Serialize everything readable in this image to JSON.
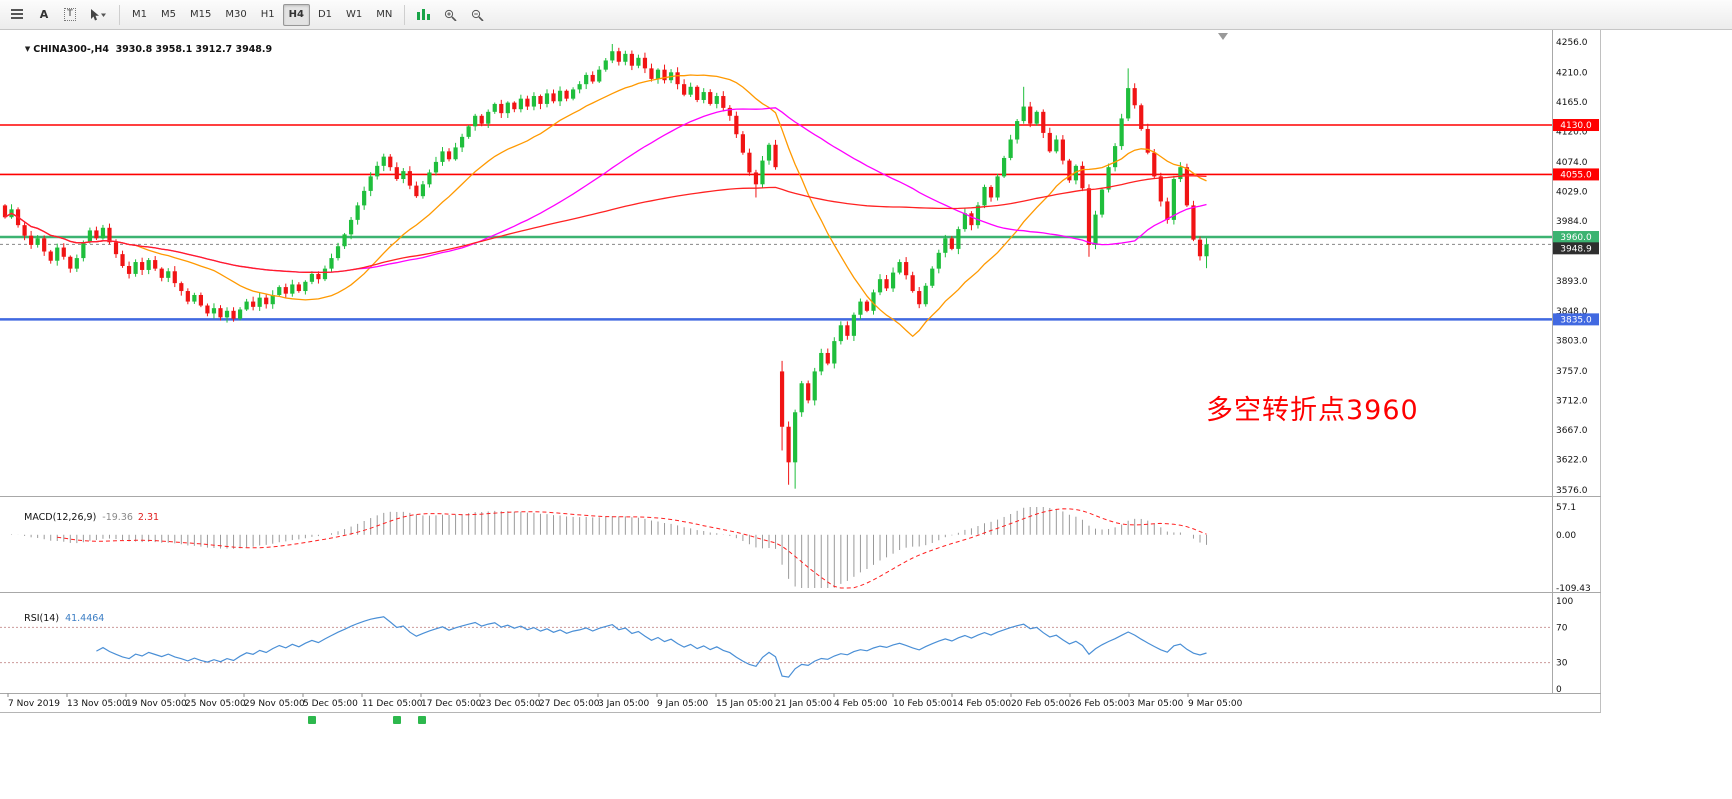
{
  "toolbar": {
    "left_tools": [
      {
        "name": "chart-list-icon"
      },
      {
        "name": "text-annotation-icon"
      },
      {
        "name": "text-box-icon"
      },
      {
        "name": "cursor-tool-icon"
      }
    ],
    "timeframes": [
      "M1",
      "M5",
      "M15",
      "M30",
      "H1",
      "H4",
      "D1",
      "W1",
      "MN"
    ],
    "active_timeframe": "H4",
    "right_tools": [
      {
        "name": "tick-grid-icon"
      },
      {
        "name": "zoom-in-icon"
      },
      {
        "name": "zoom-out-icon"
      }
    ]
  },
  "chart": {
    "title_full": "CHINA300-,H4  3930.8 3958.1 3912.7 3948.9",
    "symbol": "CHINA300-",
    "period": "H4",
    "ohlc": {
      "open": "3930.8",
      "high": "3958.1",
      "low": "3912.7",
      "close": "3948.9"
    },
    "annotation": "多空转折点3960",
    "current_price": {
      "value": 3948.9,
      "label": "3948.9"
    },
    "levels": [
      {
        "value": 4130.0,
        "label": "4130.0",
        "color": "#ff0000",
        "width": 1.6
      },
      {
        "value": 4055.0,
        "label": "4055.0",
        "color": "#ff0000",
        "width": 1.6
      },
      {
        "value": 3960.0,
        "label": "3960.0",
        "color": "#3cb371",
        "width": 2.4
      },
      {
        "value": 3835.0,
        "label": "3835.0",
        "color": "#4169e1",
        "width": 2.4
      }
    ],
    "price_scale_labels": [
      "4256.0",
      "4210.0",
      "4165.0",
      "4120.0",
      "4074.0",
      "4029.0",
      "3984.0",
      "3939.0",
      "3893.0",
      "3848.0",
      "3803.0",
      "3757.0",
      "3712.0",
      "3667.0",
      "3622.0",
      "3576.0"
    ],
    "colors": {
      "up": "#1fbe3c",
      "down": "#f01414",
      "ma_fast": "#ff9900",
      "ma_mid": "#ff00ff",
      "ma_slow": "#ff2222",
      "badge_text": "#ffffff",
      "current_badge": "#2e2e2e",
      "scale_text": "#111111",
      "border": "#a8a8a8"
    },
    "moving_averages": [
      {
        "name": "ma-fast",
        "period": 21,
        "color": "#ff9900"
      },
      {
        "name": "ma-mid",
        "period": 55,
        "color": "#ff00ff"
      },
      {
        "name": "ma-slow",
        "period": 130,
        "color": "#ff2222"
      }
    ]
  },
  "indicators": {
    "macd": {
      "name": "MACD(12,26,9)",
      "value": "-19.36",
      "signal_value": "2.31",
      "params": [
        12,
        26,
        9
      ],
      "scale": [
        "57.1",
        "0.00",
        "-109.43"
      ],
      "range": [
        -109.43,
        57.1
      ],
      "hist_color": "#9a9a9a",
      "signal_color": "#ff2020"
    },
    "rsi": {
      "name": "RSI(14)",
      "value": "41.4464",
      "period": 14,
      "scale": [
        "100",
        "70",
        "30",
        "0"
      ],
      "levels": [
        70,
        30
      ],
      "range": [
        0,
        100
      ],
      "line_color": "#4a8fd6",
      "level_color": "#cc9999"
    }
  },
  "x_axis": {
    "labels": [
      "7 Nov 2019",
      "13 Nov 05:00",
      "19 Nov 05:00",
      "25 Nov 05:00",
      "29 Nov 05:00",
      "5 Dec 05:00",
      "11 Dec 05:00",
      "17 Dec 05:00",
      "23 Dec 05:00",
      "27 Dec 05:00",
      "3 Jan 05:00",
      "9 Jan 05:00",
      "15 Jan 05:00",
      "21 Jan 05:00",
      "4 Feb 05:00",
      "10 Feb 05:00",
      "14 Feb 05:00",
      "20 Feb 05:00",
      "26 Feb 05:00",
      "3 Mar 05:00",
      "9 Mar 05:00"
    ]
  },
  "chart_data": {
    "type": "candlestick",
    "symbol": "CHINA300-",
    "timeframe": "H4",
    "y_range": [
      3576,
      4256
    ],
    "candles_oc": [
      [
        4008,
        3990
      ],
      [
        3990,
        4002
      ],
      [
        4002,
        3978
      ],
      [
        3978,
        3962
      ],
      [
        3962,
        3948
      ],
      [
        3948,
        3958
      ],
      [
        3958,
        3938
      ],
      [
        3938,
        3924
      ],
      [
        3924,
        3944
      ],
      [
        3944,
        3930
      ],
      [
        3930,
        3912
      ],
      [
        3912,
        3928
      ],
      [
        3928,
        3952
      ],
      [
        3952,
        3970
      ],
      [
        3970,
        3958
      ],
      [
        3958,
        3974
      ],
      [
        3974,
        3952
      ],
      [
        3952,
        3934
      ],
      [
        3934,
        3916
      ],
      [
        3916,
        3904
      ],
      [
        3904,
        3922
      ],
      [
        3922,
        3910
      ],
      [
        3910,
        3925
      ],
      [
        3925,
        3912
      ],
      [
        3912,
        3898
      ],
      [
        3898,
        3908
      ],
      [
        3908,
        3890
      ],
      [
        3890,
        3878
      ],
      [
        3878,
        3862
      ],
      [
        3862,
        3872
      ],
      [
        3872,
        3856
      ],
      [
        3856,
        3844
      ],
      [
        3844,
        3852
      ],
      [
        3852,
        3838
      ],
      [
        3838,
        3848
      ],
      [
        3848,
        3836
      ],
      [
        3836,
        3850
      ],
      [
        3850,
        3862
      ],
      [
        3862,
        3854
      ],
      [
        3854,
        3868
      ],
      [
        3868,
        3858
      ],
      [
        3858,
        3872
      ],
      [
        3872,
        3884
      ],
      [
        3884,
        3874
      ],
      [
        3874,
        3888
      ],
      [
        3888,
        3878
      ],
      [
        3878,
        3892
      ],
      [
        3892,
        3904
      ],
      [
        3904,
        3896
      ],
      [
        3896,
        3912
      ],
      [
        3912,
        3928
      ],
      [
        3928,
        3946
      ],
      [
        3946,
        3964
      ],
      [
        3964,
        3986
      ],
      [
        3986,
        4008
      ],
      [
        4008,
        4030
      ],
      [
        4030,
        4052
      ],
      [
        4052,
        4068
      ],
      [
        4068,
        4082
      ],
      [
        4082,
        4066
      ],
      [
        4066,
        4048
      ],
      [
        4048,
        4060
      ],
      [
        4060,
        4038
      ],
      [
        4038,
        4022
      ],
      [
        4022,
        4040
      ],
      [
        4040,
        4058
      ],
      [
        4058,
        4074
      ],
      [
        4074,
        4090
      ],
      [
        4090,
        4078
      ],
      [
        4078,
        4096
      ],
      [
        4096,
        4112
      ],
      [
        4112,
        4128
      ],
      [
        4128,
        4144
      ],
      [
        4144,
        4132
      ],
      [
        4132,
        4150
      ],
      [
        4150,
        4162
      ],
      [
        4162,
        4148
      ],
      [
        4148,
        4164
      ],
      [
        4164,
        4154
      ],
      [
        4154,
        4170
      ],
      [
        4170,
        4158
      ],
      [
        4158,
        4174
      ],
      [
        4174,
        4162
      ],
      [
        4162,
        4178
      ],
      [
        4178,
        4166
      ],
      [
        4166,
        4182
      ],
      [
        4182,
        4170
      ],
      [
        4170,
        4184
      ],
      [
        4184,
        4192
      ],
      [
        4192,
        4206
      ],
      [
        4206,
        4196
      ],
      [
        4196,
        4214
      ],
      [
        4214,
        4228
      ],
      [
        4228,
        4242
      ],
      [
        4242,
        4226
      ],
      [
        4226,
        4238
      ],
      [
        4238,
        4220
      ],
      [
        4220,
        4232
      ],
      [
        4232,
        4216
      ],
      [
        4216,
        4200
      ],
      [
        4200,
        4214
      ],
      [
        4214,
        4198
      ],
      [
        4198,
        4210
      ],
      [
        4210,
        4192
      ],
      [
        4192,
        4176
      ],
      [
        4176,
        4188
      ],
      [
        4188,
        4168
      ],
      [
        4168,
        4180
      ],
      [
        4180,
        4162
      ],
      [
        4162,
        4174
      ],
      [
        4174,
        4156
      ],
      [
        4156,
        4144
      ],
      [
        4144,
        4116
      ],
      [
        4116,
        4088
      ],
      [
        4088,
        4058
      ],
      [
        4058,
        4040
      ],
      [
        4040,
        4076
      ],
      [
        4076,
        4100
      ],
      [
        4100,
        4066
      ],
      [
        3756,
        3672
      ],
      [
        3672,
        3618
      ],
      [
        3618,
        3694
      ],
      [
        3694,
        3738
      ],
      [
        3738,
        3712
      ],
      [
        3712,
        3756
      ],
      [
        3756,
        3784
      ],
      [
        3784,
        3768
      ],
      [
        3768,
        3802
      ],
      [
        3802,
        3826
      ],
      [
        3826,
        3810
      ],
      [
        3810,
        3842
      ],
      [
        3842,
        3862
      ],
      [
        3862,
        3848
      ],
      [
        3848,
        3876
      ],
      [
        3876,
        3896
      ],
      [
        3896,
        3882
      ],
      [
        3882,
        3906
      ],
      [
        3906,
        3922
      ],
      [
        3922,
        3902
      ],
      [
        3902,
        3878
      ],
      [
        3878,
        3858
      ],
      [
        3858,
        3886
      ],
      [
        3886,
        3912
      ],
      [
        3912,
        3936
      ],
      [
        3936,
        3958
      ],
      [
        3958,
        3942
      ],
      [
        3942,
        3972
      ],
      [
        3972,
        3996
      ],
      [
        3996,
        3978
      ],
      [
        3978,
        4008
      ],
      [
        4008,
        4036
      ],
      [
        4036,
        4020
      ],
      [
        4020,
        4052
      ],
      [
        4052,
        4080
      ],
      [
        4080,
        4108
      ],
      [
        4108,
        4136
      ],
      [
        4136,
        4158
      ],
      [
        4158,
        4132
      ],
      [
        4132,
        4150
      ],
      [
        4150,
        4118
      ],
      [
        4118,
        4090
      ],
      [
        4090,
        4108
      ],
      [
        4108,
        4076
      ],
      [
        4076,
        4046
      ],
      [
        4046,
        4068
      ],
      [
        4068,
        4034
      ],
      [
        4034,
        3948
      ],
      [
        3948,
        3994
      ],
      [
        3994,
        4032
      ],
      [
        4032,
        4066
      ],
      [
        4066,
        4098
      ],
      [
        4098,
        4140
      ],
      [
        4140,
        4186
      ],
      [
        4186,
        4160
      ],
      [
        4160,
        4124
      ],
      [
        4124,
        4088
      ],
      [
        4088,
        4052
      ],
      [
        4052,
        4014
      ],
      [
        4014,
        3986
      ],
      [
        3986,
        4048
      ],
      [
        4048,
        4066
      ],
      [
        4066,
        4008
      ],
      [
        4008,
        3956
      ],
      [
        3956,
        3930.8
      ],
      [
        3930.8,
        3948.9
      ]
    ],
    "wick_overrides": {
      "93": [
        4253,
        4224
      ],
      "115": [
        4062,
        4020
      ],
      "119": [
        3772,
        3636
      ],
      "120": [
        3680,
        3584
      ],
      "121": [
        3698,
        3578
      ],
      "156": [
        4188,
        4132
      ],
      "166": [
        4040,
        3930
      ],
      "172": [
        4216,
        4136
      ],
      "184": [
        3958.1,
        3912.7
      ]
    }
  }
}
